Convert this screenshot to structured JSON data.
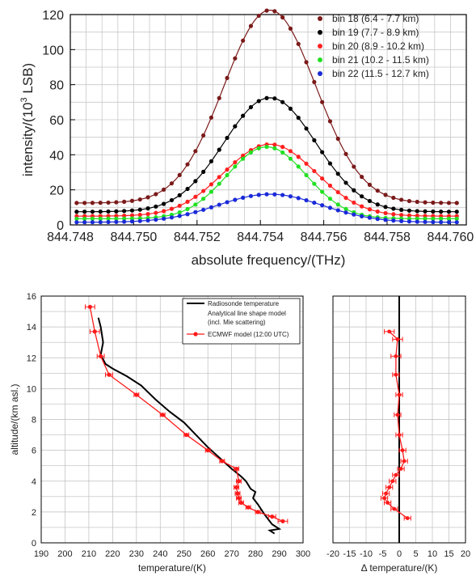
{
  "chart_data": [
    {
      "type": "line",
      "xlabel": "absolute frequency/(THz)",
      "ylabel": "intensity/(10³ LSB)",
      "ylabel_parts": [
        "intensity/(10",
        "3",
        " LSB)"
      ],
      "xlim": [
        844.748,
        844.7605
      ],
      "ylim": [
        0,
        120
      ],
      "xticks": [
        "844.748",
        "844.750",
        "844.752",
        "844.754",
        "844.756",
        "844.758",
        "844.760"
      ],
      "yticks": [
        "0",
        "20",
        "40",
        "60",
        "80",
        "100",
        "120"
      ],
      "grid": true,
      "legend_position": "top-right",
      "series": [
        {
          "name": "bin 18 (6.4 - 7.7 km)",
          "color": "#7b1a1a",
          "center": 844.7543,
          "sigma": 0.00145,
          "amplitude": 110,
          "baseline": 12.5
        },
        {
          "name": "bin 19 (7.7 - 8.9 km)",
          "color": "#000000",
          "center": 844.7543,
          "sigma": 0.00145,
          "amplitude": 65,
          "baseline": 7.5
        },
        {
          "name": "bin 20 (8.9 - 10.2 km)",
          "color": "#ff2020",
          "center": 844.7543,
          "sigma": 0.00145,
          "amplitude": 41,
          "baseline": 5
        },
        {
          "name": "bin 21 (10.2 - 11.5 km)",
          "color": "#22e022",
          "center": 844.7542,
          "sigma": 0.00125,
          "amplitude": 41,
          "baseline": 3.5
        },
        {
          "name": "bin 22 (11.5 - 12.7 km)",
          "color": "#1a2ad8",
          "center": 844.7543,
          "sigma": 0.00165,
          "amplitude": 16,
          "baseline": 1.5
        }
      ]
    },
    {
      "type": "line",
      "xlabel": "temperature/(K)",
      "ylabel": "altitude/(km asl.)",
      "xlim": [
        190,
        300
      ],
      "ylim": [
        0,
        16
      ],
      "xticks": [
        "190",
        "200",
        "210",
        "220",
        "230",
        "240",
        "250",
        "260",
        "270",
        "280",
        "290",
        "300"
      ],
      "yticks": [
        "0",
        "2",
        "4",
        "6",
        "8",
        "10",
        "12",
        "14",
        "16"
      ],
      "grid": true,
      "legend_position": "top-right",
      "legend_labels": [
        "Radiosonde temperature",
        "Analytical line shape model",
        "(incl. Mie scattering)",
        "ECMWF model (12:00 UTC)"
      ],
      "series": [
        {
          "name": "Radiosonde temperature",
          "color": "#000000",
          "x": [
            288,
            286,
            290,
            287,
            284,
            281,
            279,
            280,
            278,
            276,
            274,
            270,
            265,
            260,
            255,
            250,
            244,
            238,
            232,
            226,
            220,
            217,
            215,
            216,
            215,
            214
          ],
          "y": [
            0.6,
            0.8,
            0.9,
            1.2,
            1.8,
            2.5,
            2.9,
            3.3,
            3.5,
            4.0,
            4.3,
            4.8,
            5.5,
            6.2,
            7.0,
            7.8,
            8.5,
            9.3,
            10.2,
            10.8,
            11.3,
            11.6,
            12.2,
            13.0,
            14.0,
            14.6
          ]
        },
        {
          "name": "ECMWF model (12:00 UTC)",
          "color": "#ff1a1a",
          "x": [
            291.5,
            287,
            281,
            277,
            274,
            273,
            272.5,
            272,
            273,
            272,
            266,
            260,
            251,
            241,
            230,
            218.5,
            215,
            212.5,
            210.5
          ],
          "y": [
            1.4,
            1.7,
            2.0,
            2.3,
            2.6,
            2.9,
            3.2,
            3.6,
            4.0,
            4.8,
            5.3,
            6.0,
            7.0,
            8.3,
            9.6,
            10.9,
            12.1,
            13.7,
            15.3
          ],
          "xerr": [
            2,
            1.5,
            1,
            1,
            1,
            1,
            1,
            1,
            1,
            1,
            1,
            1,
            1,
            1,
            1,
            1.5,
            1.5,
            2,
            2
          ]
        }
      ]
    },
    {
      "type": "line",
      "xlabel": "Δ temperature/(K)",
      "ylabel": "",
      "xlim": [
        -20,
        20
      ],
      "ylim": [
        0,
        16
      ],
      "xticks": [
        "-20",
        "-15",
        "-10",
        "-5",
        "0",
        "5",
        "10",
        "15",
        "20"
      ],
      "grid": true,
      "series": [
        {
          "name": "",
          "color": "#ff1a1a",
          "x": [
            2.5,
            -1.5,
            -3.5,
            -4.5,
            -4,
            -3,
            -2,
            -1,
            0.5,
            1.5,
            1,
            0,
            -0.5,
            0,
            -1,
            -1,
            -0.5,
            -3
          ],
          "y": [
            1.6,
            2.2,
            2.6,
            2.9,
            3.2,
            3.6,
            4.0,
            4.4,
            4.8,
            5.3,
            6.0,
            7.0,
            8.3,
            9.6,
            10.9,
            12.1,
            13.2,
            13.7
          ],
          "xerr": [
            1,
            1,
            1,
            1,
            1,
            1,
            1,
            1,
            1,
            1,
            1,
            1,
            1,
            1,
            1,
            1.5,
            1.5,
            1.5
          ]
        }
      ]
    }
  ]
}
